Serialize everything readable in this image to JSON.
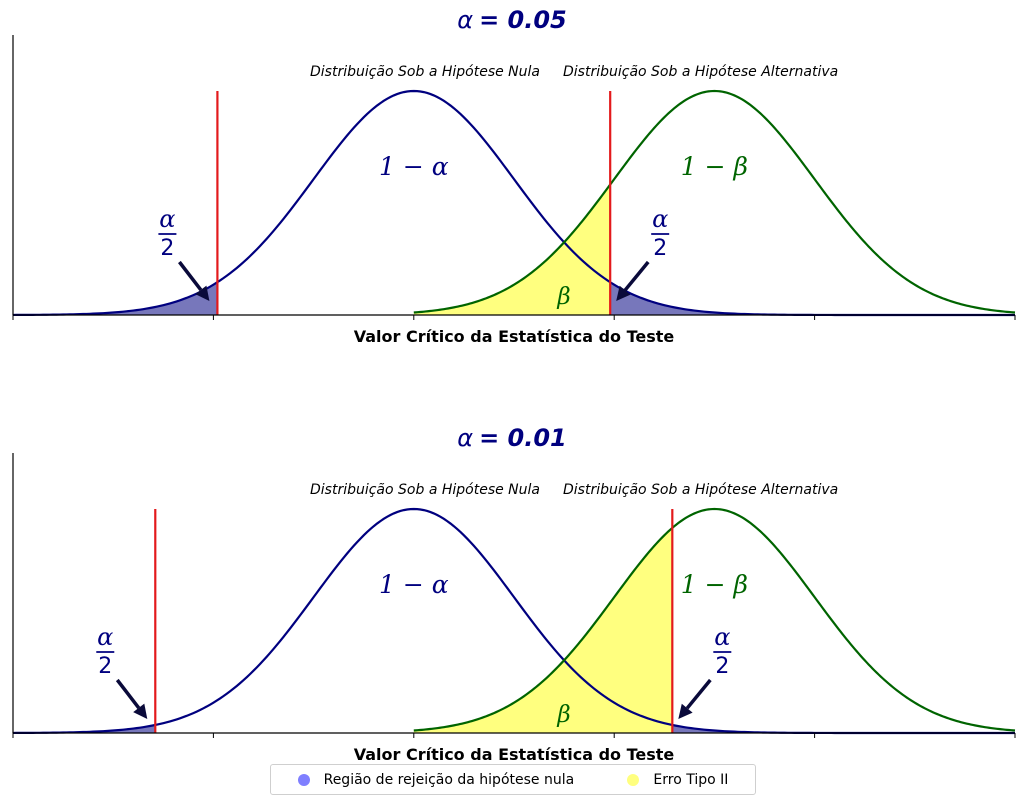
{
  "chart_data": [
    {
      "type": "area",
      "title_symbol": "α",
      "title_value": "= 0.05",
      "xlabel": "Valor Crítico da Estatística do Teste",
      "annotations": {
        "null_label": "Distribuição Sob a Hipótese Nula",
        "alt_label": "Distribuição Sob a Hipótese Alternativa",
        "one_minus_alpha": "1 − α",
        "one_minus_beta": "1 − β",
        "beta": "β",
        "alpha_num": "α",
        "alpha_den": "2"
      },
      "null_mean": 0,
      "alt_mean": 1.5,
      "sd": 0.5,
      "xlim": [
        -2,
        3
      ],
      "critical_values": [
        -0.98,
        0.98
      ],
      "series": [
        {
          "curve": "null",
          "color": "#00007f"
        },
        {
          "curve": "alt",
          "color": "#006400"
        }
      ],
      "grid": false
    },
    {
      "type": "area",
      "title_symbol": "α",
      "title_value": "= 0.01",
      "xlabel": "Valor Crítico da Estatística do Teste",
      "annotations": {
        "null_label": "Distribuição Sob a Hipótese Nula",
        "alt_label": "Distribuição Sob a Hipótese Alternativa",
        "one_minus_alpha": "1 − α",
        "one_minus_beta": "1 − β",
        "beta": "β",
        "alpha_num": "α",
        "alpha_den": "2"
      },
      "null_mean": 0,
      "alt_mean": 1.5,
      "sd": 0.5,
      "xlim": [
        -2,
        3
      ],
      "critical_values": [
        -1.29,
        1.29
      ],
      "series": [
        {
          "curve": "null",
          "color": "#00007f"
        },
        {
          "curve": "alt",
          "color": "#006400"
        }
      ],
      "grid": false
    }
  ],
  "legend": {
    "placement": "bottom-center",
    "items": [
      {
        "label": "Região de rejeição da hipótese nula",
        "color": "#7f7fff"
      },
      {
        "label": "Erro Tipo II",
        "color": "#ffff7f"
      }
    ]
  },
  "colors": {
    "critical_line": "#e31a1c",
    "rejection_fill": "#7777bb",
    "beta_fill": "#ffff7f",
    "null_curve": "#00007f",
    "alt_curve": "#006400",
    "arrow": "#0a0a3a"
  }
}
